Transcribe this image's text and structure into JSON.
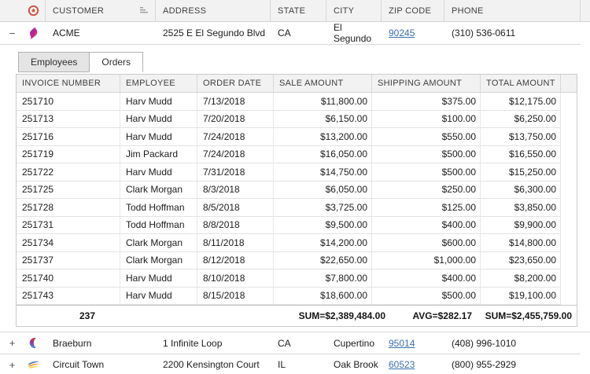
{
  "master": {
    "header": {
      "customer": "CUSTOMER",
      "address": "ADDRESS",
      "state": "STATE",
      "city": "CITY",
      "zip": "ZIP CODE",
      "phone": "PHONE"
    },
    "rows": [
      {
        "expander": "−",
        "logo_icon": "flame-logo",
        "customer": "ACME",
        "address": "2525 E El Segundo Blvd",
        "state": "CA",
        "city": "El Segundo",
        "zip": "90245",
        "phone": "(310) 536-0611",
        "expanded": true
      },
      {
        "expander": "+",
        "logo_icon": "crescent-logo",
        "customer": "Braeburn",
        "address": "1 Infinite Loop",
        "state": "CA",
        "city": "Cupertino",
        "zip": "95014",
        "phone": "(408) 996-1010",
        "expanded": false
      },
      {
        "expander": "+",
        "logo_icon": "swoosh-logo",
        "customer": "Circuit Town",
        "address": "2200 Kensington Court",
        "state": "IL",
        "city": "Oak Brook",
        "zip": "60523",
        "phone": "(800) 955-2929",
        "expanded": false
      }
    ]
  },
  "detail": {
    "tabs": [
      {
        "label": "Employees",
        "active": false
      },
      {
        "label": "Orders",
        "active": true
      }
    ],
    "columns": [
      "INVOICE NUMBER",
      "EMPLOYEE",
      "ORDER DATE",
      "SALE AMOUNT",
      "SHIPPING AMOUNT",
      "TOTAL AMOUNT"
    ],
    "rows": [
      [
        "251710",
        "Harv Mudd",
        "7/13/2018",
        "$11,800.00",
        "$375.00",
        "$12,175.00"
      ],
      [
        "251713",
        "Harv Mudd",
        "7/20/2018",
        "$6,150.00",
        "$100.00",
        "$6,250.00"
      ],
      [
        "251716",
        "Harv Mudd",
        "7/24/2018",
        "$13,200.00",
        "$550.00",
        "$13,750.00"
      ],
      [
        "251719",
        "Jim Packard",
        "7/24/2018",
        "$16,050.00",
        "$500.00",
        "$16,550.00"
      ],
      [
        "251722",
        "Harv Mudd",
        "7/31/2018",
        "$14,750.00",
        "$500.00",
        "$15,250.00"
      ],
      [
        "251725",
        "Clark Morgan",
        "8/3/2018",
        "$6,050.00",
        "$250.00",
        "$6,300.00"
      ],
      [
        "251728",
        "Todd Hoffman",
        "8/5/2018",
        "$3,725.00",
        "$125.00",
        "$3,850.00"
      ],
      [
        "251731",
        "Todd Hoffman",
        "8/8/2018",
        "$9,500.00",
        "$400.00",
        "$9,900.00"
      ],
      [
        "251734",
        "Clark Morgan",
        "8/11/2018",
        "$14,200.00",
        "$600.00",
        "$14,800.00"
      ],
      [
        "251737",
        "Clark Morgan",
        "8/12/2018",
        "$22,650.00",
        "$1,000.00",
        "$23,650.00"
      ],
      [
        "251740",
        "Harv Mudd",
        "8/10/2018",
        "$7,800.00",
        "$400.00",
        "$8,200.00"
      ],
      [
        "251743",
        "Harv Mudd",
        "8/15/2018",
        "$18,600.00",
        "$500.00",
        "$19,100.00"
      ]
    ],
    "summary": {
      "count": "237",
      "sale": "SUM=$2,389,484.00",
      "shipping": "AVG=$282.17",
      "total": "SUM=$2,455,759.00"
    }
  },
  "icons": {
    "header_badge": "record-badge-icon",
    "customer_sort": "sort-ascending-icon"
  },
  "colors": {
    "accent_red": "#d14f3f",
    "link_blue": "#3a6fb0",
    "header_bg": "#f2f2f2",
    "grid_border": "#c9c9c9"
  }
}
